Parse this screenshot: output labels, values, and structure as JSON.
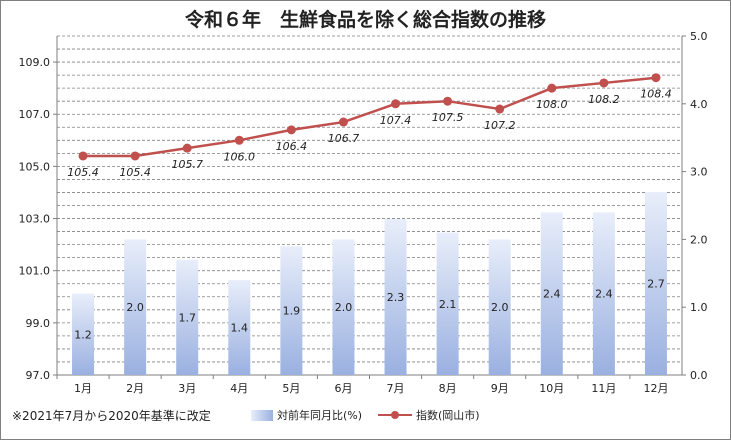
{
  "title": "令和６年　生鮮食品を除く総合指数の推移",
  "note": "※2021年7月から2020年基準に改定",
  "legend": {
    "bar_label": "対前年同月比(%)",
    "line_label": "指数(岡山市)"
  },
  "colors": {
    "line": "#c0504d",
    "bar_light": "#e8eefa",
    "bar_dark": "#9ab0e0",
    "grid": "#808080"
  },
  "chart_data": {
    "type": "bar+line",
    "categories": [
      "1月",
      "2月",
      "3月",
      "4月",
      "5月",
      "6月",
      "7月",
      "8月",
      "9月",
      "10月",
      "11月",
      "12月"
    ],
    "series": [
      {
        "name": "対前年同月比(%)",
        "type": "bar",
        "axis": "right",
        "values": [
          1.2,
          2.0,
          1.7,
          1.4,
          1.9,
          2.0,
          2.3,
          2.1,
          2.0,
          2.4,
          2.4,
          2.7
        ],
        "labels": [
          "1.2",
          "2.0",
          "1.7",
          "1.4",
          "1.9",
          "2.0",
          "2.3",
          "2.1",
          "2.0",
          "2.4",
          "2.4",
          "2.7"
        ]
      },
      {
        "name": "指数(岡山市)",
        "type": "line",
        "axis": "left",
        "values": [
          105.4,
          105.4,
          105.7,
          106.0,
          106.4,
          106.7,
          107.4,
          107.5,
          107.2,
          108.0,
          108.2,
          108.4
        ],
        "labels": [
          "105.4",
          "105.4",
          "105.7",
          "106.0",
          "106.4",
          "106.7",
          "107.4",
          "107.5",
          "107.2",
          "108.0",
          "108.2",
          "108.4"
        ]
      }
    ],
    "y_left": {
      "min": 97.0,
      "max": 110.0,
      "ticks": [
        "97.0",
        "99.0",
        "101.0",
        "103.0",
        "105.0",
        "107.0",
        "109.0"
      ]
    },
    "y_right": {
      "min": 0.0,
      "max": 5.0,
      "ticks": [
        "0.0",
        "1.0",
        "2.0",
        "3.0",
        "4.0",
        "5.0"
      ]
    },
    "grid": true
  }
}
